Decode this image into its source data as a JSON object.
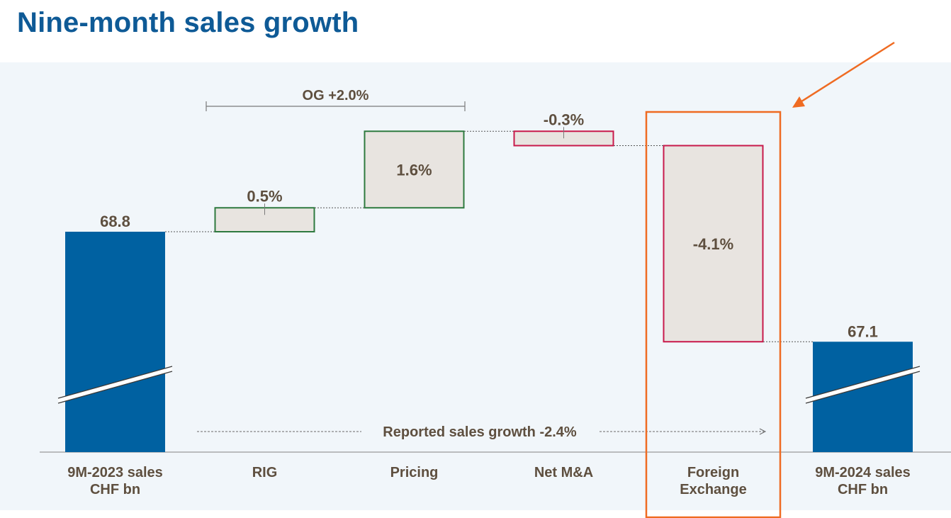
{
  "title": "Nine-month sales growth",
  "chart_data": {
    "type": "waterfall",
    "title": "Nine-month sales growth",
    "unit_start_end": "CHF bn",
    "bars": [
      {
        "category": "9M-2023 sales\nCHF bn",
        "kind": "total",
        "value": 68.8,
        "label": "68.8"
      },
      {
        "category": "RIG",
        "kind": "delta",
        "value": 0.5,
        "label": "0.5%"
      },
      {
        "category": "Pricing",
        "kind": "delta",
        "value": 1.6,
        "label": "1.6%"
      },
      {
        "category": "Net M&A",
        "kind": "delta",
        "value": -0.3,
        "label": "-0.3%"
      },
      {
        "category": "Foreign\nExchange",
        "kind": "delta",
        "value": -4.1,
        "label": "-4.1%",
        "highlighted": true
      },
      {
        "category": "9M-2024 sales\nCHF bn",
        "kind": "total",
        "value": 67.1,
        "label": "67.1"
      }
    ],
    "annotations": {
      "organic_growth": "OG +2.0%",
      "reported_growth": "Reported sales growth -2.4%"
    },
    "axis_break": true,
    "colors": {
      "total": "#0061a1",
      "positive_border": "#2e7a3f",
      "negative_border": "#c8194b",
      "delta_fill": "#e8e4e0",
      "highlight": "#ef6b22",
      "title": "#0e5a96",
      "label": "#5e4f3f",
      "panel": "#f1f6fa"
    }
  }
}
